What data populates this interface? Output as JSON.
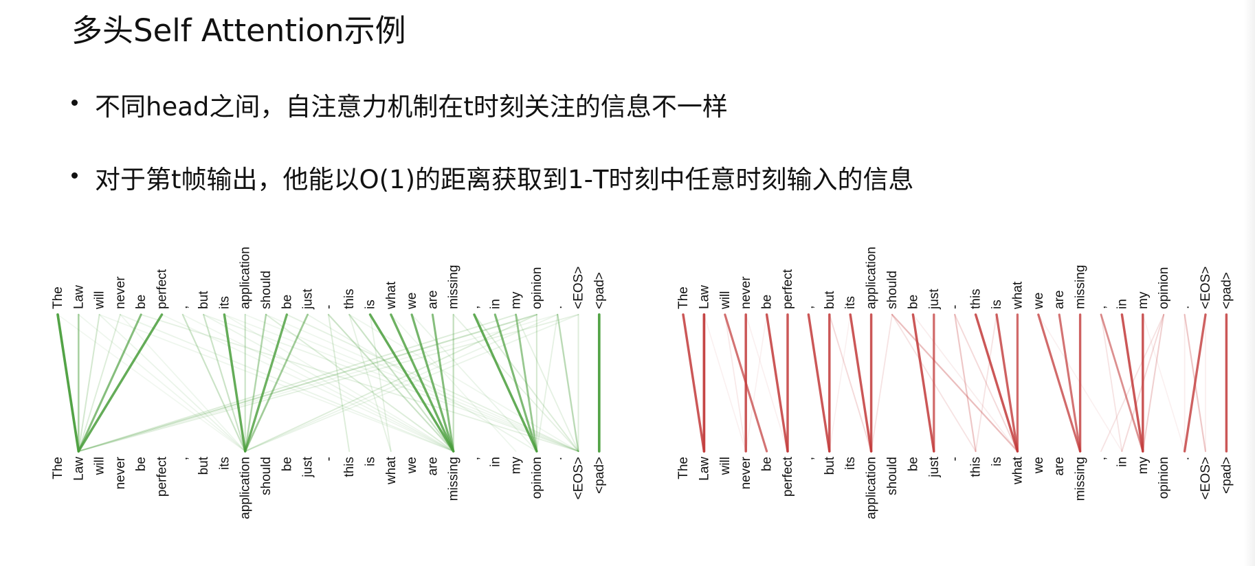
{
  "slide": {
    "title": "多头Self Attention示例",
    "bullets": [
      "不同head之间，自注意力机制在t时刻关注的信息不一样",
      "对于第t帧输出，他能以O(1)的距离获取到1-T时刻中任意时刻输入的信息"
    ]
  },
  "tokens": [
    "The",
    "Law",
    "will",
    "never",
    "be",
    "perfect",
    ",",
    "but",
    "its",
    "application",
    "should",
    "be",
    "just",
    "-",
    "this",
    "is",
    "what",
    "we",
    "are",
    "missing",
    ",",
    "in",
    "my",
    "opinion",
    ".",
    "<EOS>",
    "<pad>"
  ],
  "heads": [
    {
      "name": "green-head",
      "color": "#4a9e3c",
      "edges": [
        [
          0,
          1,
          1.0
        ],
        [
          1,
          1,
          0.5
        ],
        [
          2,
          1,
          0.25
        ],
        [
          3,
          1,
          0.2
        ],
        [
          4,
          1,
          0.7
        ],
        [
          5,
          1,
          0.9
        ],
        [
          2,
          9,
          0.12
        ],
        [
          3,
          19,
          0.12
        ],
        [
          4,
          25,
          0.15
        ],
        [
          2,
          19,
          0.1
        ],
        [
          1,
          9,
          0.1
        ],
        [
          0,
          9,
          0.08
        ],
        [
          3,
          9,
          0.1
        ],
        [
          7,
          25,
          0.12
        ],
        [
          7,
          19,
          0.12
        ],
        [
          8,
          19,
          0.1
        ],
        [
          6,
          19,
          0.1
        ],
        [
          8,
          25,
          0.1
        ],
        [
          7,
          9,
          0.3
        ],
        [
          8,
          9,
          0.9
        ],
        [
          9,
          9,
          0.3
        ],
        [
          10,
          9,
          0.45
        ],
        [
          11,
          9,
          0.85
        ],
        [
          12,
          9,
          0.55
        ],
        [
          6,
          9,
          0.3
        ],
        [
          10,
          19,
          0.2
        ],
        [
          11,
          25,
          0.15
        ],
        [
          12,
          23,
          0.12
        ],
        [
          10,
          25,
          0.1
        ],
        [
          13,
          19,
          0.3
        ],
        [
          14,
          19,
          0.3
        ],
        [
          15,
          19,
          0.9
        ],
        [
          16,
          19,
          0.85
        ],
        [
          17,
          19,
          0.8
        ],
        [
          18,
          19,
          0.7
        ],
        [
          19,
          19,
          0.35
        ],
        [
          13,
          14,
          0.2
        ],
        [
          15,
          16,
          0.15
        ],
        [
          14,
          16,
          0.15
        ],
        [
          21,
          23,
          0.75
        ],
        [
          22,
          23,
          0.6
        ],
        [
          20,
          23,
          0.9
        ],
        [
          23,
          23,
          0.25
        ],
        [
          24,
          23,
          0.15
        ],
        [
          25,
          25,
          0.2
        ],
        [
          20,
          25,
          0.2
        ],
        [
          19,
          25,
          0.15
        ],
        [
          22,
          25,
          0.15
        ],
        [
          24,
          25,
          0.4
        ],
        [
          23,
          1,
          0.3
        ],
        [
          23,
          9,
          0.2
        ],
        [
          22,
          1,
          0.2
        ],
        [
          25,
          1,
          0.15
        ],
        [
          24,
          9,
          0.12
        ],
        [
          24,
          1,
          0.1
        ],
        [
          25,
          9,
          0.12
        ],
        [
          26,
          26,
          1.0
        ],
        [
          16,
          22,
          0.1
        ],
        [
          17,
          23,
          0.12
        ],
        [
          14,
          25,
          0.1
        ],
        [
          5,
          19,
          0.1
        ],
        [
          9,
          25,
          0.1
        ]
      ]
    },
    {
      "name": "red-head",
      "color": "#c23b3b",
      "edges": [
        [
          0,
          1,
          0.9
        ],
        [
          1,
          1,
          1.0
        ],
        [
          2,
          4,
          0.75
        ],
        [
          3,
          3,
          0.9
        ],
        [
          4,
          5,
          0.9
        ],
        [
          5,
          5,
          0.9
        ],
        [
          2,
          3,
          0.12
        ],
        [
          3,
          5,
          0.08
        ],
        [
          1,
          3,
          0.05
        ],
        [
          4,
          3,
          0.05
        ],
        [
          6,
          7,
          0.9
        ],
        [
          7,
          7,
          0.9
        ],
        [
          8,
          9,
          0.9
        ],
        [
          9,
          9,
          0.9
        ],
        [
          7,
          9,
          0.2
        ],
        [
          10,
          9,
          0.15
        ],
        [
          8,
          7,
          0.05
        ],
        [
          10,
          16,
          0.35
        ],
        [
          10,
          14,
          0.15
        ],
        [
          11,
          12,
          0.9
        ],
        [
          12,
          12,
          0.8
        ],
        [
          11,
          16,
          0.1
        ],
        [
          13,
          14,
          0.3
        ],
        [
          14,
          16,
          0.9
        ],
        [
          15,
          16,
          0.85
        ],
        [
          16,
          16,
          0.8
        ],
        [
          13,
          16,
          0.2
        ],
        [
          15,
          14,
          0.15
        ],
        [
          17,
          19,
          0.8
        ],
        [
          18,
          19,
          0.75
        ],
        [
          19,
          19,
          0.85
        ],
        [
          17,
          21,
          0.05
        ],
        [
          20,
          22,
          0.6
        ],
        [
          21,
          22,
          0.9
        ],
        [
          22,
          22,
          0.9
        ],
        [
          23,
          20,
          0.15
        ],
        [
          23,
          21,
          0.2
        ],
        [
          23,
          22,
          0.25
        ],
        [
          20,
          21,
          0.15
        ],
        [
          24,
          25,
          0.3
        ],
        [
          25,
          24,
          0.85
        ],
        [
          26,
          26,
          0.9
        ],
        [
          24,
          24,
          0.1
        ],
        [
          22,
          24,
          0.05
        ],
        [
          25,
          25,
          0.1
        ]
      ]
    }
  ]
}
